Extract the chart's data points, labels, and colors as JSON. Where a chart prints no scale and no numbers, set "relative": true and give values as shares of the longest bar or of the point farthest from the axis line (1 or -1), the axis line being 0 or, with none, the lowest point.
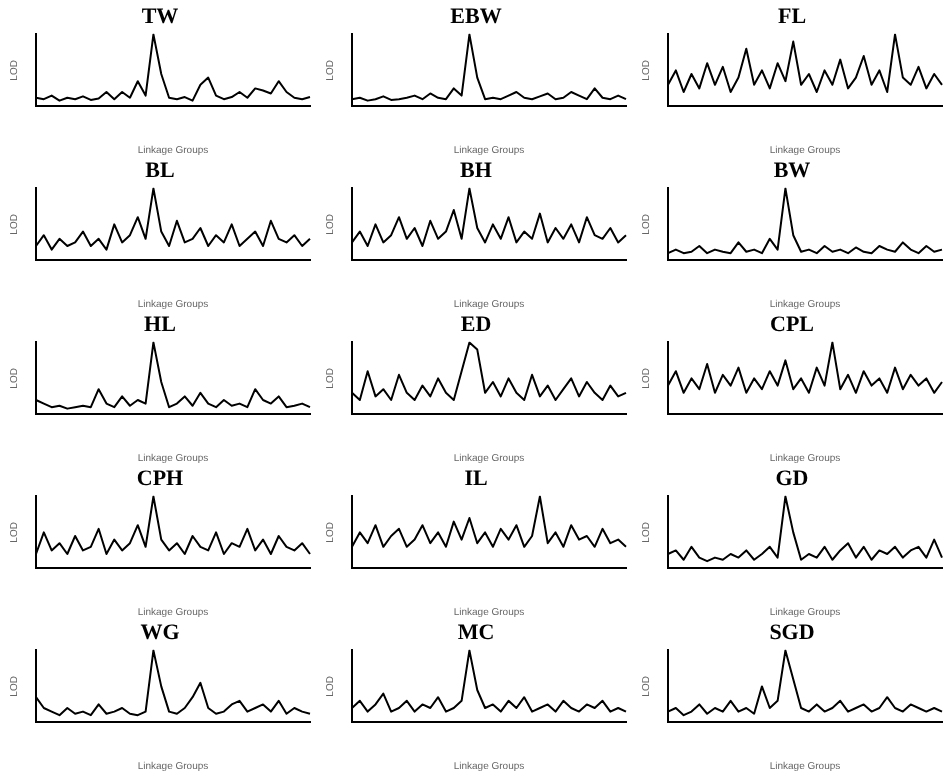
{
  "chart_data": [
    {
      "type": "line",
      "title": "TW",
      "xlabel": "Linkage Groups",
      "ylabel": "LOD",
      "relative": true,
      "marker": "none",
      "line_style": "solid",
      "categories": [
        null,
        null,
        null,
        null,
        null,
        null,
        null,
        null,
        null,
        null,
        null,
        null,
        null,
        null,
        null,
        null,
        null,
        null,
        null,
        null,
        null,
        null,
        null,
        null,
        null,
        null,
        null,
        null,
        null,
        null,
        null,
        null,
        null,
        null,
        null,
        null
      ],
      "series": [
        {
          "color": "#000000",
          "values": [
            0.12,
            0.1,
            0.15,
            0.08,
            0.12,
            0.1,
            0.14,
            0.09,
            0.11,
            0.2,
            0.1,
            0.2,
            0.12,
            0.35,
            0.15,
            1,
            0.45,
            0.12,
            0.1,
            0.13,
            0.08,
            0.3,
            0.4,
            0.15,
            0.1,
            0.13,
            0.2,
            0.12,
            0.25,
            0.22,
            0.18,
            0.35,
            0.2,
            0.12,
            0.1,
            0.13
          ]
        }
      ]
    },
    {
      "type": "line",
      "title": "EBW",
      "xlabel": "Linkage Groups",
      "ylabel": "LOD",
      "relative": true,
      "marker": "none",
      "line_style": "solid",
      "categories": [
        null,
        null,
        null,
        null,
        null,
        null,
        null,
        null,
        null,
        null,
        null,
        null,
        null,
        null,
        null,
        null,
        null,
        null,
        null,
        null,
        null,
        null,
        null,
        null,
        null,
        null,
        null,
        null,
        null,
        null,
        null,
        null,
        null,
        null,
        null,
        null
      ],
      "series": [
        {
          "color": "#000000",
          "values": [
            0.1,
            0.12,
            0.08,
            0.1,
            0.14,
            0.09,
            0.1,
            0.12,
            0.15,
            0.1,
            0.18,
            0.12,
            0.1,
            0.25,
            0.15,
            1,
            0.4,
            0.1,
            0.12,
            0.1,
            0.15,
            0.2,
            0.12,
            0.1,
            0.14,
            0.18,
            0.1,
            0.12,
            0.2,
            0.15,
            0.1,
            0.25,
            0.12,
            0.1,
            0.15,
            0.1
          ]
        }
      ]
    },
    {
      "type": "line",
      "title": "FL",
      "xlabel": "Linkage Groups",
      "ylabel": "LOD",
      "relative": true,
      "marker": "none",
      "line_style": "solid",
      "categories": [
        null,
        null,
        null,
        null,
        null,
        null,
        null,
        null,
        null,
        null,
        null,
        null,
        null,
        null,
        null,
        null,
        null,
        null,
        null,
        null,
        null,
        null,
        null,
        null,
        null,
        null,
        null,
        null,
        null,
        null,
        null,
        null,
        null,
        null,
        null,
        null
      ],
      "series": [
        {
          "color": "#000000",
          "values": [
            0.3,
            0.5,
            0.2,
            0.45,
            0.25,
            0.6,
            0.3,
            0.55,
            0.2,
            0.4,
            0.8,
            0.3,
            0.5,
            0.25,
            0.6,
            0.35,
            0.9,
            0.3,
            0.45,
            0.2,
            0.5,
            0.3,
            0.65,
            0.25,
            0.4,
            0.7,
            0.3,
            0.5,
            0.2,
            1,
            0.4,
            0.3,
            0.55,
            0.25,
            0.45,
            0.3
          ]
        }
      ]
    },
    {
      "type": "line",
      "title": "BL",
      "xlabel": "Linkage Groups",
      "ylabel": "LOD",
      "relative": true,
      "marker": "none",
      "line_style": "solid",
      "categories": [
        null,
        null,
        null,
        null,
        null,
        null,
        null,
        null,
        null,
        null,
        null,
        null,
        null,
        null,
        null,
        null,
        null,
        null,
        null,
        null,
        null,
        null,
        null,
        null,
        null,
        null,
        null,
        null,
        null,
        null,
        null,
        null,
        null,
        null,
        null,
        null
      ],
      "series": [
        {
          "color": "#000000",
          "values": [
            0.2,
            0.35,
            0.15,
            0.3,
            0.2,
            0.25,
            0.4,
            0.2,
            0.3,
            0.15,
            0.5,
            0.25,
            0.35,
            0.6,
            0.3,
            1,
            0.4,
            0.2,
            0.55,
            0.25,
            0.3,
            0.45,
            0.2,
            0.35,
            0.25,
            0.5,
            0.2,
            0.3,
            0.4,
            0.2,
            0.55,
            0.3,
            0.25,
            0.35,
            0.2,
            0.3
          ]
        }
      ]
    },
    {
      "type": "line",
      "title": "BH",
      "xlabel": "Linkage Groups",
      "ylabel": "LOD",
      "relative": true,
      "marker": "none",
      "line_style": "solid",
      "categories": [
        null,
        null,
        null,
        null,
        null,
        null,
        null,
        null,
        null,
        null,
        null,
        null,
        null,
        null,
        null,
        null,
        null,
        null,
        null,
        null,
        null,
        null,
        null,
        null,
        null,
        null,
        null,
        null,
        null,
        null,
        null,
        null,
        null,
        null,
        null,
        null
      ],
      "series": [
        {
          "color": "#000000",
          "values": [
            0.25,
            0.4,
            0.2,
            0.5,
            0.25,
            0.35,
            0.6,
            0.3,
            0.45,
            0.2,
            0.55,
            0.3,
            0.4,
            0.7,
            0.3,
            1,
            0.45,
            0.25,
            0.5,
            0.3,
            0.6,
            0.25,
            0.4,
            0.3,
            0.65,
            0.25,
            0.45,
            0.3,
            0.5,
            0.25,
            0.6,
            0.35,
            0.3,
            0.45,
            0.25,
            0.35
          ]
        }
      ]
    },
    {
      "type": "line",
      "title": "BW",
      "xlabel": "Linkage Groups",
      "ylabel": "LOD",
      "relative": true,
      "marker": "none",
      "line_style": "solid",
      "categories": [
        null,
        null,
        null,
        null,
        null,
        null,
        null,
        null,
        null,
        null,
        null,
        null,
        null,
        null,
        null,
        null,
        null,
        null,
        null,
        null,
        null,
        null,
        null,
        null,
        null,
        null,
        null,
        null,
        null,
        null,
        null,
        null,
        null,
        null,
        null,
        null
      ],
      "series": [
        {
          "color": "#000000",
          "values": [
            0.1,
            0.15,
            0.1,
            0.12,
            0.2,
            0.1,
            0.15,
            0.12,
            0.1,
            0.25,
            0.12,
            0.15,
            0.1,
            0.3,
            0.15,
            1,
            0.35,
            0.12,
            0.15,
            0.1,
            0.2,
            0.12,
            0.15,
            0.1,
            0.18,
            0.12,
            0.1,
            0.2,
            0.15,
            0.12,
            0.25,
            0.15,
            0.1,
            0.2,
            0.12,
            0.15
          ]
        }
      ]
    },
    {
      "type": "line",
      "title": "HL",
      "xlabel": "Linkage Groups",
      "ylabel": "LOD",
      "relative": true,
      "marker": "none",
      "line_style": "solid",
      "categories": [
        null,
        null,
        null,
        null,
        null,
        null,
        null,
        null,
        null,
        null,
        null,
        null,
        null,
        null,
        null,
        null,
        null,
        null,
        null,
        null,
        null,
        null,
        null,
        null,
        null,
        null,
        null,
        null,
        null,
        null,
        null,
        null,
        null,
        null,
        null,
        null
      ],
      "series": [
        {
          "color": "#000000",
          "values": [
            0.2,
            0.15,
            0.1,
            0.12,
            0.08,
            0.1,
            0.12,
            0.1,
            0.35,
            0.15,
            0.1,
            0.25,
            0.12,
            0.2,
            0.15,
            1,
            0.45,
            0.1,
            0.15,
            0.25,
            0.12,
            0.3,
            0.15,
            0.1,
            0.2,
            0.12,
            0.15,
            0.1,
            0.35,
            0.2,
            0.15,
            0.25,
            0.1,
            0.12,
            0.15,
            0.1
          ]
        }
      ]
    },
    {
      "type": "line",
      "title": "ED",
      "xlabel": "Linkage Groups",
      "ylabel": "LOD",
      "relative": true,
      "marker": "none",
      "line_style": "solid",
      "categories": [
        null,
        null,
        null,
        null,
        null,
        null,
        null,
        null,
        null,
        null,
        null,
        null,
        null,
        null,
        null,
        null,
        null,
        null,
        null,
        null,
        null,
        null,
        null,
        null,
        null,
        null,
        null,
        null,
        null,
        null,
        null,
        null,
        null,
        null,
        null,
        null
      ],
      "series": [
        {
          "color": "#000000",
          "values": [
            0.3,
            0.2,
            0.6,
            0.25,
            0.35,
            0.2,
            0.55,
            0.3,
            0.2,
            0.4,
            0.25,
            0.5,
            0.3,
            0.2,
            0.6,
            1,
            0.9,
            0.3,
            0.45,
            0.25,
            0.5,
            0.3,
            0.2,
            0.55,
            0.25,
            0.4,
            0.2,
            0.35,
            0.5,
            0.25,
            0.45,
            0.3,
            0.2,
            0.4,
            0.25,
            0.3
          ]
        }
      ]
    },
    {
      "type": "line",
      "title": "CPL",
      "xlabel": "Linkage Groups",
      "ylabel": "LOD",
      "relative": true,
      "marker": "none",
      "line_style": "solid",
      "categories": [
        null,
        null,
        null,
        null,
        null,
        null,
        null,
        null,
        null,
        null,
        null,
        null,
        null,
        null,
        null,
        null,
        null,
        null,
        null,
        null,
        null,
        null,
        null,
        null,
        null,
        null,
        null,
        null,
        null,
        null,
        null,
        null,
        null,
        null,
        null,
        null
      ],
      "series": [
        {
          "color": "#000000",
          "values": [
            0.4,
            0.6,
            0.3,
            0.5,
            0.35,
            0.7,
            0.3,
            0.55,
            0.4,
            0.65,
            0.3,
            0.5,
            0.35,
            0.6,
            0.4,
            0.75,
            0.35,
            0.5,
            0.3,
            0.65,
            0.4,
            1,
            0.35,
            0.55,
            0.3,
            0.6,
            0.4,
            0.5,
            0.3,
            0.65,
            0.35,
            0.55,
            0.4,
            0.5,
            0.3,
            0.45
          ]
        }
      ]
    },
    {
      "type": "line",
      "title": "CPH",
      "xlabel": "Linkage Groups",
      "ylabel": "LOD",
      "relative": true,
      "marker": "none",
      "line_style": "solid",
      "categories": [
        null,
        null,
        null,
        null,
        null,
        null,
        null,
        null,
        null,
        null,
        null,
        null,
        null,
        null,
        null,
        null,
        null,
        null,
        null,
        null,
        null,
        null,
        null,
        null,
        null,
        null,
        null,
        null,
        null,
        null,
        null,
        null,
        null,
        null,
        null,
        null
      ],
      "series": [
        {
          "color": "#000000",
          "values": [
            0.2,
            0.5,
            0.25,
            0.35,
            0.2,
            0.45,
            0.25,
            0.3,
            0.55,
            0.2,
            0.4,
            0.25,
            0.35,
            0.6,
            0.3,
            1,
            0.4,
            0.25,
            0.35,
            0.2,
            0.45,
            0.3,
            0.25,
            0.5,
            0.2,
            0.35,
            0.3,
            0.55,
            0.25,
            0.4,
            0.2,
            0.45,
            0.3,
            0.25,
            0.35,
            0.2
          ]
        }
      ]
    },
    {
      "type": "line",
      "title": "IL",
      "xlabel": "Linkage Groups",
      "ylabel": "LOD",
      "relative": true,
      "marker": "none",
      "line_style": "solid",
      "categories": [
        null,
        null,
        null,
        null,
        null,
        null,
        null,
        null,
        null,
        null,
        null,
        null,
        null,
        null,
        null,
        null,
        null,
        null,
        null,
        null,
        null,
        null,
        null,
        null,
        null,
        null,
        null,
        null,
        null,
        null,
        null,
        null,
        null,
        null,
        null,
        null
      ],
      "series": [
        {
          "color": "#000000",
          "values": [
            0.3,
            0.5,
            0.35,
            0.6,
            0.3,
            0.45,
            0.55,
            0.3,
            0.4,
            0.6,
            0.35,
            0.5,
            0.3,
            0.65,
            0.4,
            0.7,
            0.35,
            0.5,
            0.3,
            0.55,
            0.4,
            0.6,
            0.3,
            0.45,
            1,
            0.35,
            0.5,
            0.3,
            0.6,
            0.4,
            0.45,
            0.3,
            0.55,
            0.35,
            0.4,
            0.3
          ]
        }
      ]
    },
    {
      "type": "line",
      "title": "GD",
      "xlabel": "Linkage Groups",
      "ylabel": "LOD",
      "relative": true,
      "marker": "none",
      "line_style": "solid",
      "categories": [
        null,
        null,
        null,
        null,
        null,
        null,
        null,
        null,
        null,
        null,
        null,
        null,
        null,
        null,
        null,
        null,
        null,
        null,
        null,
        null,
        null,
        null,
        null,
        null,
        null,
        null,
        null,
        null,
        null,
        null,
        null,
        null,
        null,
        null,
        null,
        null
      ],
      "series": [
        {
          "color": "#000000",
          "values": [
            0.2,
            0.25,
            0.12,
            0.3,
            0.15,
            0.1,
            0.15,
            0.12,
            0.2,
            0.15,
            0.25,
            0.12,
            0.2,
            0.3,
            0.15,
            1,
            0.5,
            0.12,
            0.2,
            0.15,
            0.3,
            0.12,
            0.25,
            0.35,
            0.15,
            0.3,
            0.12,
            0.25,
            0.2,
            0.3,
            0.15,
            0.25,
            0.3,
            0.15,
            0.4,
            0.15
          ]
        }
      ]
    },
    {
      "type": "line",
      "title": "WG",
      "xlabel": "Linkage Groups",
      "ylabel": "LOD",
      "relative": true,
      "marker": "none",
      "line_style": "solid",
      "categories": [
        null,
        null,
        null,
        null,
        null,
        null,
        null,
        null,
        null,
        null,
        null,
        null,
        null,
        null,
        null,
        null,
        null,
        null,
        null,
        null,
        null,
        null,
        null,
        null,
        null,
        null,
        null,
        null,
        null,
        null,
        null,
        null,
        null,
        null,
        null,
        null
      ],
      "series": [
        {
          "color": "#000000",
          "values": [
            0.35,
            0.2,
            0.15,
            0.1,
            0.2,
            0.12,
            0.15,
            0.1,
            0.25,
            0.12,
            0.15,
            0.2,
            0.12,
            0.1,
            0.15,
            1,
            0.5,
            0.15,
            0.12,
            0.2,
            0.35,
            0.55,
            0.2,
            0.12,
            0.15,
            0.25,
            0.3,
            0.15,
            0.2,
            0.25,
            0.15,
            0.3,
            0.12,
            0.2,
            0.15,
            0.12
          ]
        }
      ]
    },
    {
      "type": "line",
      "title": "MC",
      "xlabel": "Linkage Groups",
      "ylabel": "LOD",
      "relative": true,
      "marker": "none",
      "line_style": "solid",
      "categories": [
        null,
        null,
        null,
        null,
        null,
        null,
        null,
        null,
        null,
        null,
        null,
        null,
        null,
        null,
        null,
        null,
        null,
        null,
        null,
        null,
        null,
        null,
        null,
        null,
        null,
        null,
        null,
        null,
        null,
        null,
        null,
        null,
        null,
        null,
        null,
        null
      ],
      "series": [
        {
          "color": "#000000",
          "values": [
            0.2,
            0.3,
            0.15,
            0.25,
            0.4,
            0.15,
            0.2,
            0.3,
            0.15,
            0.25,
            0.2,
            0.35,
            0.15,
            0.2,
            0.3,
            1,
            0.45,
            0.2,
            0.25,
            0.15,
            0.3,
            0.2,
            0.35,
            0.15,
            0.2,
            0.25,
            0.15,
            0.3,
            0.2,
            0.15,
            0.25,
            0.2,
            0.3,
            0.15,
            0.2,
            0.15
          ]
        }
      ]
    },
    {
      "type": "line",
      "title": "SGD",
      "xlabel": "Linkage Groups",
      "ylabel": "LOD",
      "relative": true,
      "marker": "none",
      "line_style": "solid",
      "categories": [
        null,
        null,
        null,
        null,
        null,
        null,
        null,
        null,
        null,
        null,
        null,
        null,
        null,
        null,
        null,
        null,
        null,
        null,
        null,
        null,
        null,
        null,
        null,
        null,
        null,
        null,
        null,
        null,
        null,
        null,
        null,
        null,
        null,
        null,
        null,
        null
      ],
      "series": [
        {
          "color": "#000000",
          "values": [
            0.15,
            0.2,
            0.1,
            0.15,
            0.25,
            0.12,
            0.2,
            0.15,
            0.3,
            0.15,
            0.2,
            0.12,
            0.5,
            0.2,
            0.3,
            1,
            0.6,
            0.2,
            0.15,
            0.25,
            0.15,
            0.2,
            0.3,
            0.15,
            0.2,
            0.25,
            0.15,
            0.2,
            0.35,
            0.2,
            0.15,
            0.25,
            0.2,
            0.15,
            0.2,
            0.15
          ]
        }
      ]
    }
  ]
}
